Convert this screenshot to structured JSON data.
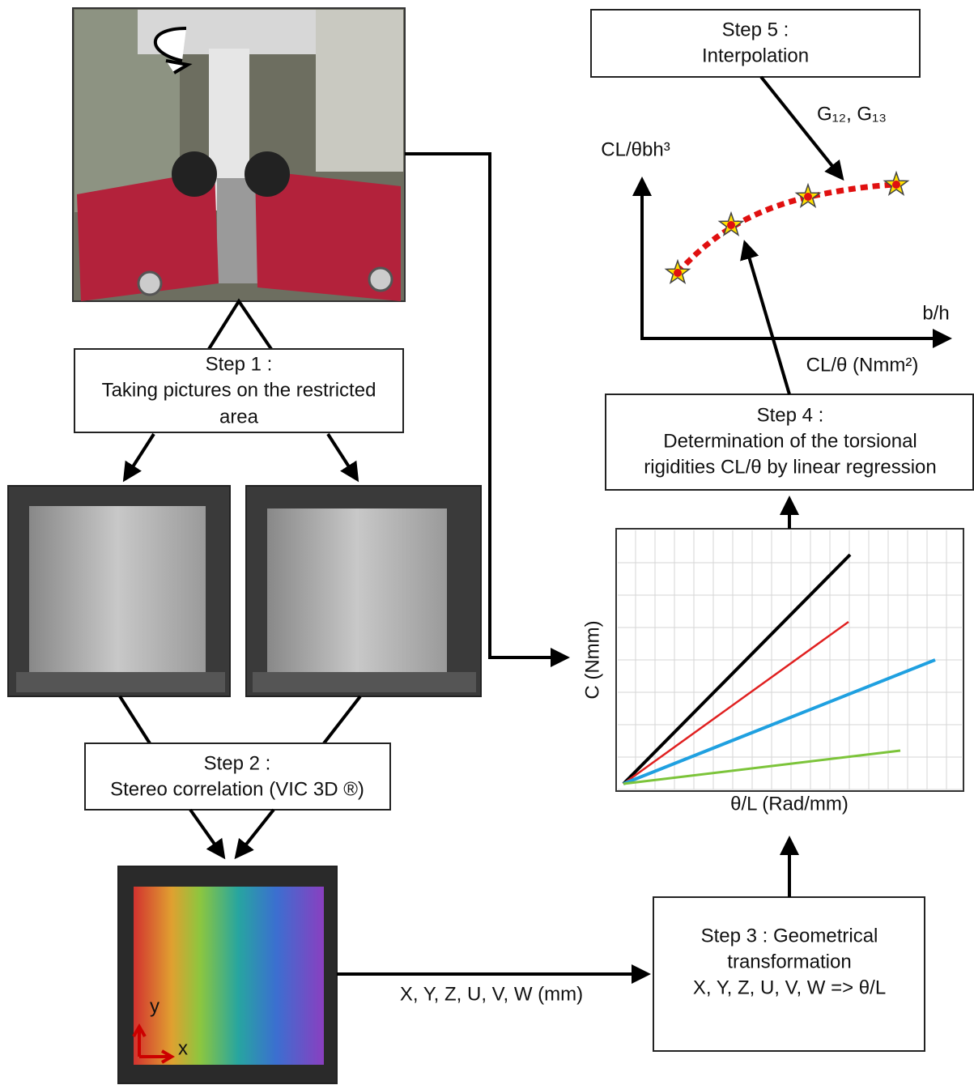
{
  "step1": {
    "lines": [
      "Step 1 :",
      "Taking pictures on the restricted",
      "area"
    ]
  },
  "step2": {
    "lines": [
      "Step 2 :",
      "Stereo correlation (VIC 3D ®)"
    ]
  },
  "step3": {
    "lines": [
      "Step 3 : Geometrical",
      "transformation",
      "X, Y, Z, U, V, W => θ/L"
    ]
  },
  "step4": {
    "lines": [
      "Step 4 :",
      "Determination of the torsional",
      "rigidities CL/θ by linear regression"
    ]
  },
  "step5": {
    "lines": [
      "Step 5 :",
      "Interpolation"
    ]
  },
  "field_output_label": "X, Y, Z, U, V, W (mm)",
  "axes_image": {
    "y": "y",
    "x": "x"
  },
  "torque_plot": {
    "y_label": "C (Nmm)",
    "x_label": "θ/L (Rad/mm)"
  },
  "rigidity_label": "CL/θ (Nmm²)",
  "interpolation_plot": {
    "y_label": "CL/θbh³",
    "x_label": "b/h"
  },
  "moduli_label": "G₁₂, G₁₃"
}
